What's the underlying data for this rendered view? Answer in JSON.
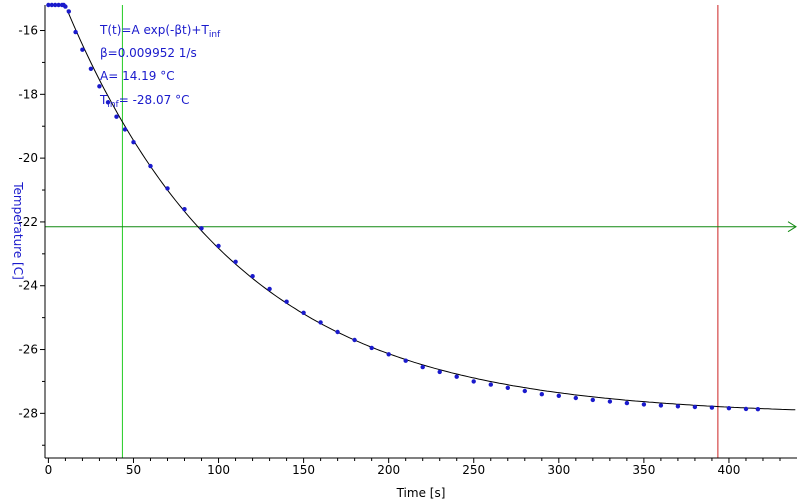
{
  "chart_data": {
    "type": "scatter",
    "title": "",
    "xlabel": "Time [s]",
    "ylabel": "Temperature [C]",
    "xlim": [
      -2,
      440
    ],
    "ylim": [
      -29.4,
      -15.2
    ],
    "xticks": [
      0,
      50,
      100,
      150,
      200,
      250,
      300,
      350,
      400
    ],
    "yticks": [
      -16,
      -18,
      -20,
      -22,
      -24,
      -26,
      -28
    ],
    "grid": false,
    "colors": {
      "data": "#1a1acc",
      "fit": "#000000",
      "ylabel": "#1a1acc",
      "green_cursor": "#22cc22",
      "red_cursor": "#cc2222",
      "horizontal_cursor": "#118811"
    },
    "fit_model": {
      "A": 14.19,
      "beta": 0.009952,
      "T_inf": -28.07,
      "x_start": 11,
      "x_end": 440
    },
    "annotations": {
      "line1_prefix": "T(t)=A exp(-βt)+T",
      "line1_sub": "inf",
      "line2": "β=0.009952 1/s",
      "line3": "A= 14.19 °C",
      "line4_prefix": "T",
      "line4_sub": "inf",
      "line4_suffix": "= -28.07 °C"
    },
    "cursors": {
      "vertical_green_x": 43.5,
      "vertical_red_x": 393.5,
      "horizontal_y": -22.15
    },
    "series": [
      {
        "points": [
          [
            0,
            -15.2
          ],
          [
            2,
            -15.2
          ],
          [
            4,
            -15.2
          ],
          [
            6,
            -15.2
          ],
          [
            8,
            -15.2
          ],
          [
            9,
            -15.2
          ],
          [
            10,
            -15.25
          ],
          [
            12,
            -15.4
          ],
          [
            16,
            -16.05
          ],
          [
            20,
            -16.6
          ],
          [
            25,
            -17.2
          ],
          [
            30,
            -17.75
          ],
          [
            35,
            -18.25
          ],
          [
            40,
            -18.7
          ],
          [
            45,
            -19.1
          ],
          [
            50,
            -19.5
          ],
          [
            60,
            -20.25
          ],
          [
            70,
            -20.95
          ],
          [
            80,
            -21.6
          ],
          [
            90,
            -22.2
          ],
          [
            100,
            -22.75
          ],
          [
            110,
            -23.25
          ],
          [
            120,
            -23.7
          ],
          [
            130,
            -24.1
          ],
          [
            140,
            -24.5
          ],
          [
            150,
            -24.85
          ],
          [
            160,
            -25.15
          ],
          [
            170,
            -25.45
          ],
          [
            180,
            -25.7
          ],
          [
            190,
            -25.95
          ],
          [
            200,
            -26.15
          ],
          [
            210,
            -26.35
          ],
          [
            220,
            -26.55
          ],
          [
            230,
            -26.7
          ],
          [
            240,
            -26.85
          ],
          [
            250,
            -27.0
          ],
          [
            260,
            -27.1
          ],
          [
            270,
            -27.2
          ],
          [
            280,
            -27.3
          ],
          [
            290,
            -27.4
          ],
          [
            300,
            -27.45
          ],
          [
            310,
            -27.52
          ],
          [
            320,
            -27.58
          ],
          [
            330,
            -27.63
          ],
          [
            340,
            -27.68
          ],
          [
            350,
            -27.72
          ],
          [
            360,
            -27.75
          ],
          [
            370,
            -27.78
          ],
          [
            380,
            -27.8
          ],
          [
            390,
            -27.82
          ],
          [
            400,
            -27.84
          ],
          [
            410,
            -27.86
          ],
          [
            417,
            -27.87
          ]
        ]
      }
    ]
  }
}
